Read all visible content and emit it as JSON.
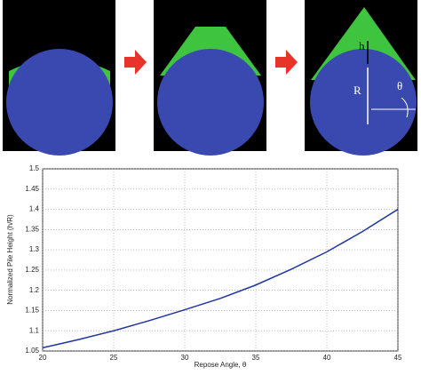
{
  "figure": {
    "labels": [
      "h",
      "R",
      "θ"
    ]
  },
  "chart_data": {
    "type": "line",
    "xlabel": "Repose Angle, θ",
    "ylabel": "Normalized Pile Height (h/R)",
    "x": [
      20,
      22.5,
      25,
      27.5,
      30,
      32.5,
      35,
      37.5,
      40,
      42.5,
      45
    ],
    "series": [
      {
        "color": "#2036a0",
        "values": [
          1.058,
          1.078,
          1.1,
          1.125,
          1.152,
          1.18,
          1.213,
          1.252,
          1.295,
          1.345,
          1.4
        ]
      }
    ],
    "xlim": [
      20,
      45
    ],
    "xticks": [
      20,
      25,
      30,
      35,
      40,
      45
    ],
    "ylim": [
      1.05,
      1.5
    ],
    "yticks": [
      1.05,
      1.1,
      1.15,
      1.2,
      1.25,
      1.3,
      1.35,
      1.4,
      1.45,
      1.5
    ],
    "grid": true
  }
}
